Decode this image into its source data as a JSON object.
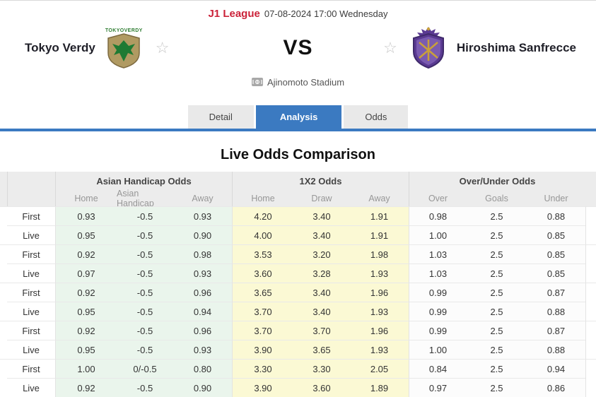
{
  "header": {
    "league": "J1 League",
    "datetime": "07-08-2024 17:00 Wednesday",
    "home_team": "Tokyo Verdy",
    "away_team": "Hiroshima Sanfrecce",
    "vs_label": "VS",
    "stadium": "Ajinomoto Stadium",
    "home_logo_caption": "TOKYOVERDY"
  },
  "icons": {
    "favorite_star": "☆"
  },
  "tabs": [
    {
      "label": "Detail",
      "active": false
    },
    {
      "label": "Analysis",
      "active": true
    },
    {
      "label": "Odds",
      "active": false
    }
  ],
  "section_title": "Live Odds Comparison",
  "colors": {
    "accent_blue": "#3b7ac1",
    "league_red": "#cb2239",
    "asian_handicap_bg": "#eaf5ec",
    "x12_bg": "#fbf9d4",
    "over_under_bg": "#fcfcfc"
  },
  "odds_table": {
    "groups": [
      {
        "label": "Asian Handicap Odds",
        "columns": [
          "Home",
          "Asian Handicap",
          "Away"
        ]
      },
      {
        "label": "1X2 Odds",
        "columns": [
          "Home",
          "Draw",
          "Away"
        ]
      },
      {
        "label": "Over/Under Odds",
        "columns": [
          "Over",
          "Goals",
          "Under"
        ]
      }
    ],
    "rows": [
      {
        "label": "First",
        "ah": [
          "0.93",
          "-0.5",
          "0.93"
        ],
        "x12": [
          "4.20",
          "3.40",
          "1.91"
        ],
        "ou": [
          "0.98",
          "2.5",
          "0.88"
        ]
      },
      {
        "label": "Live",
        "ah": [
          "0.95",
          "-0.5",
          "0.90"
        ],
        "x12": [
          "4.00",
          "3.40",
          "1.91"
        ],
        "ou": [
          "1.00",
          "2.5",
          "0.85"
        ]
      },
      {
        "label": "First",
        "ah": [
          "0.92",
          "-0.5",
          "0.98"
        ],
        "x12": [
          "3.53",
          "3.20",
          "1.98"
        ],
        "ou": [
          "1.03",
          "2.5",
          "0.85"
        ]
      },
      {
        "label": "Live",
        "ah": [
          "0.97",
          "-0.5",
          "0.93"
        ],
        "x12": [
          "3.60",
          "3.28",
          "1.93"
        ],
        "ou": [
          "1.03",
          "2.5",
          "0.85"
        ]
      },
      {
        "label": "First",
        "ah": [
          "0.92",
          "-0.5",
          "0.96"
        ],
        "x12": [
          "3.65",
          "3.40",
          "1.96"
        ],
        "ou": [
          "0.99",
          "2.5",
          "0.87"
        ]
      },
      {
        "label": "Live",
        "ah": [
          "0.95",
          "-0.5",
          "0.94"
        ],
        "x12": [
          "3.70",
          "3.40",
          "1.93"
        ],
        "ou": [
          "0.99",
          "2.5",
          "0.88"
        ]
      },
      {
        "label": "First",
        "ah": [
          "0.92",
          "-0.5",
          "0.96"
        ],
        "x12": [
          "3.70",
          "3.70",
          "1.96"
        ],
        "ou": [
          "0.99",
          "2.5",
          "0.87"
        ]
      },
      {
        "label": "Live",
        "ah": [
          "0.95",
          "-0.5",
          "0.93"
        ],
        "x12": [
          "3.90",
          "3.65",
          "1.93"
        ],
        "ou": [
          "1.00",
          "2.5",
          "0.88"
        ]
      },
      {
        "label": "First",
        "ah": [
          "1.00",
          "0/-0.5",
          "0.80"
        ],
        "x12": [
          "3.30",
          "3.30",
          "2.05"
        ],
        "ou": [
          "0.84",
          "2.5",
          "0.94"
        ]
      },
      {
        "label": "Live",
        "ah": [
          "0.92",
          "-0.5",
          "0.90"
        ],
        "x12": [
          "3.90",
          "3.60",
          "1.89"
        ],
        "ou": [
          "0.97",
          "2.5",
          "0.86"
        ]
      }
    ]
  }
}
